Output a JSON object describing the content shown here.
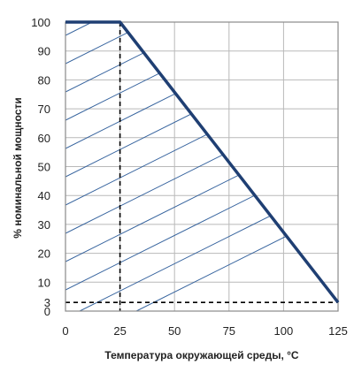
{
  "chart_data": {
    "type": "line",
    "xlabel": "Температура окружающей среды, °C",
    "ylabel": "% номинальной мощности",
    "xlim": [
      0,
      125
    ],
    "ylim": [
      0,
      100
    ],
    "x_ticks": [
      0,
      25,
      50,
      75,
      100,
      125
    ],
    "y_ticks": [
      0,
      3,
      10,
      20,
      30,
      40,
      50,
      60,
      70,
      80,
      90,
      100
    ],
    "grid": true,
    "legend": "none",
    "series": [
      {
        "x": [
          0,
          25,
          125
        ],
        "y": [
          100,
          100,
          3
        ]
      }
    ],
    "reference_lines": [
      {
        "type": "vertical",
        "x": 25,
        "style": "dashed"
      },
      {
        "type": "horizontal",
        "y": 3,
        "style": "dashed"
      }
    ],
    "hatched_region": "safe operating area under the derating curve",
    "colors": {
      "curve": "#1f3f73",
      "hatch": "#2e5d9a",
      "grid": "#b9b9b9"
    }
  }
}
